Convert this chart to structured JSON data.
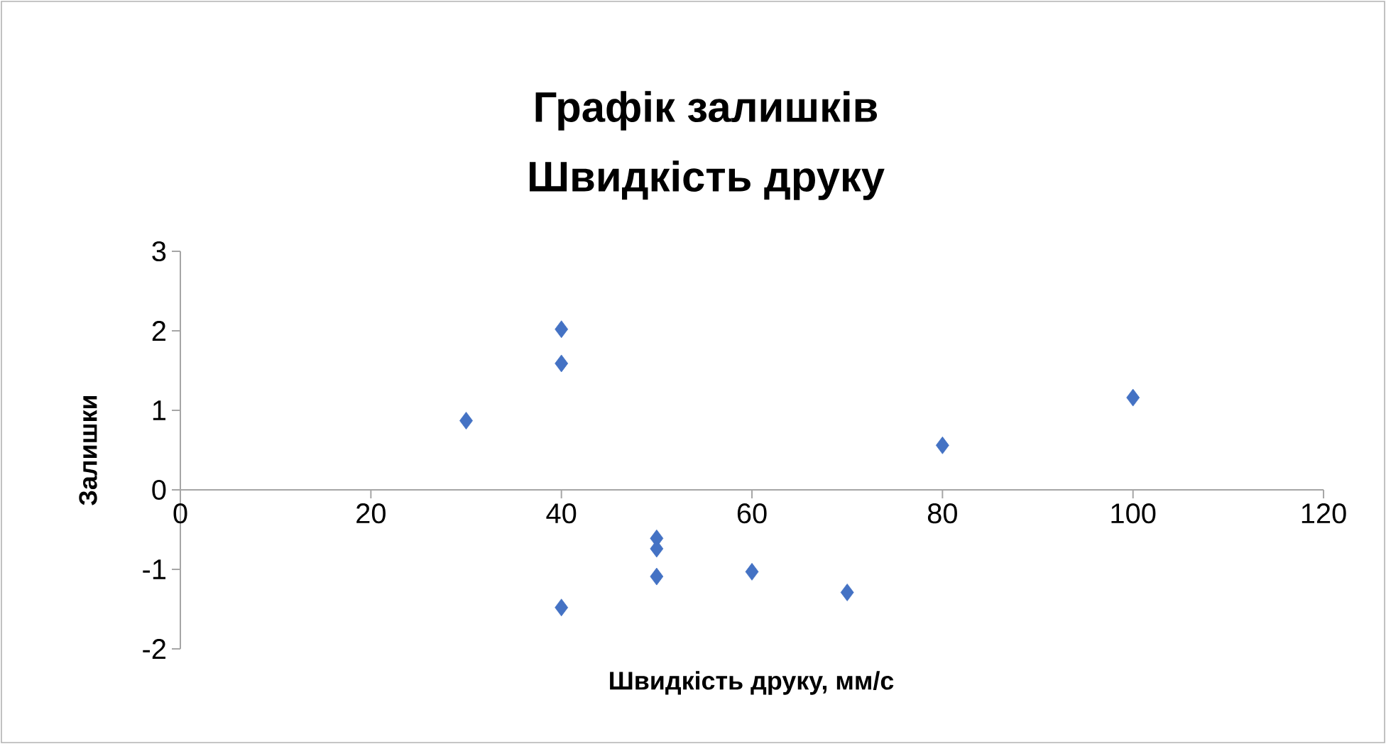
{
  "chart_data": {
    "type": "scatter",
    "title": "Графік залишків",
    "subtitle": "Швидкість друку",
    "xlabel": "Швидкість друку, мм/с",
    "ylabel": "Залишки",
    "xlim": [
      0,
      120
    ],
    "xticks": [
      0,
      20,
      40,
      60,
      80,
      100,
      120
    ],
    "ylim": [
      -2,
      3
    ],
    "yticks": [
      -2,
      -1,
      0,
      1,
      2,
      3
    ],
    "marker": "diamond",
    "series": [
      {
        "color": "#4472c4",
        "x": [
          30,
          40,
          40,
          40,
          50,
          50,
          50,
          60,
          70,
          80,
          100
        ],
        "values": [
          0.87,
          2.02,
          1.59,
          -1.48,
          -0.61,
          -0.74,
          -1.09,
          -1.03,
          -1.29,
          0.56,
          1.16
        ]
      }
    ]
  }
}
